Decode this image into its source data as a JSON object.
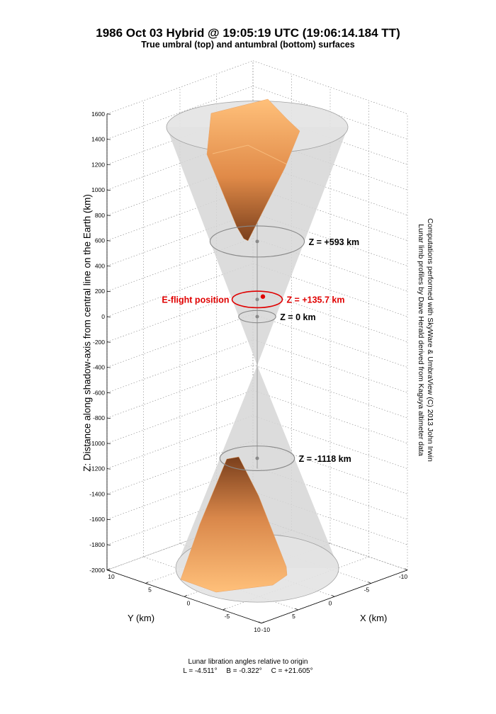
{
  "title": "1986 Oct 03 Hybrid @ 19:05:19 UTC (19:06:14.184 TT)",
  "subtitle": "True umbral (top) and antumbral (bottom) surfaces",
  "credit": {
    "line1": "Computations performed with SkyWare & UmbraView (C) 2013 John Irwin",
    "line2": "Lunar limb profiles by Dave Herald derived from Kaguya altimeter data"
  },
  "footer": {
    "line1": "Lunar libration angles relative to origin",
    "L": "L = -4.511°",
    "B": "B = -0.322°",
    "C": "C = +21.605°"
  },
  "colors": {
    "cone": "#d6d6d6",
    "surface_light": "#ffc07a",
    "surface_dark": "#8a4a22",
    "eflight": "#e00000"
  },
  "chart_data": {
    "type": "3d-surface",
    "title": "1986 Oct 03 Hybrid @ 19:05:19 UTC (19:06:14.184 TT)",
    "subtitle": "True umbral (top) and antumbral (bottom) surfaces",
    "zlabel": "Z: Distance along shadow-axis from central line on the Earth (km)",
    "xlabel": "X (km)",
    "ylabel": "Y (km)",
    "zlim": [
      -2000,
      1600
    ],
    "xlim": [
      -10,
      10
    ],
    "ylim": [
      -10,
      10
    ],
    "z_ticks": [
      1600,
      1400,
      1200,
      1000,
      800,
      600,
      400,
      200,
      0,
      -200,
      -400,
      -600,
      -800,
      -1000,
      -1200,
      -1400,
      -1600,
      -1800,
      -2000
    ],
    "x_ticks": [
      -10,
      -5,
      0,
      5,
      10
    ],
    "y_ticks": [
      -10,
      -5,
      0,
      5,
      10
    ],
    "grid": true,
    "annotations": [
      {
        "label": "Z = +593 km",
        "z": 593,
        "color": "#000000"
      },
      {
        "label": "Z = +135.7 km",
        "z": 135.7,
        "color": "#e00000"
      },
      {
        "label": "Z = 0 km",
        "z": 0,
        "color": "#000000"
      },
      {
        "label": "Z = -1118 km",
        "z": -1118,
        "color": "#000000"
      }
    ],
    "eflight_label": "E-flight position"
  }
}
